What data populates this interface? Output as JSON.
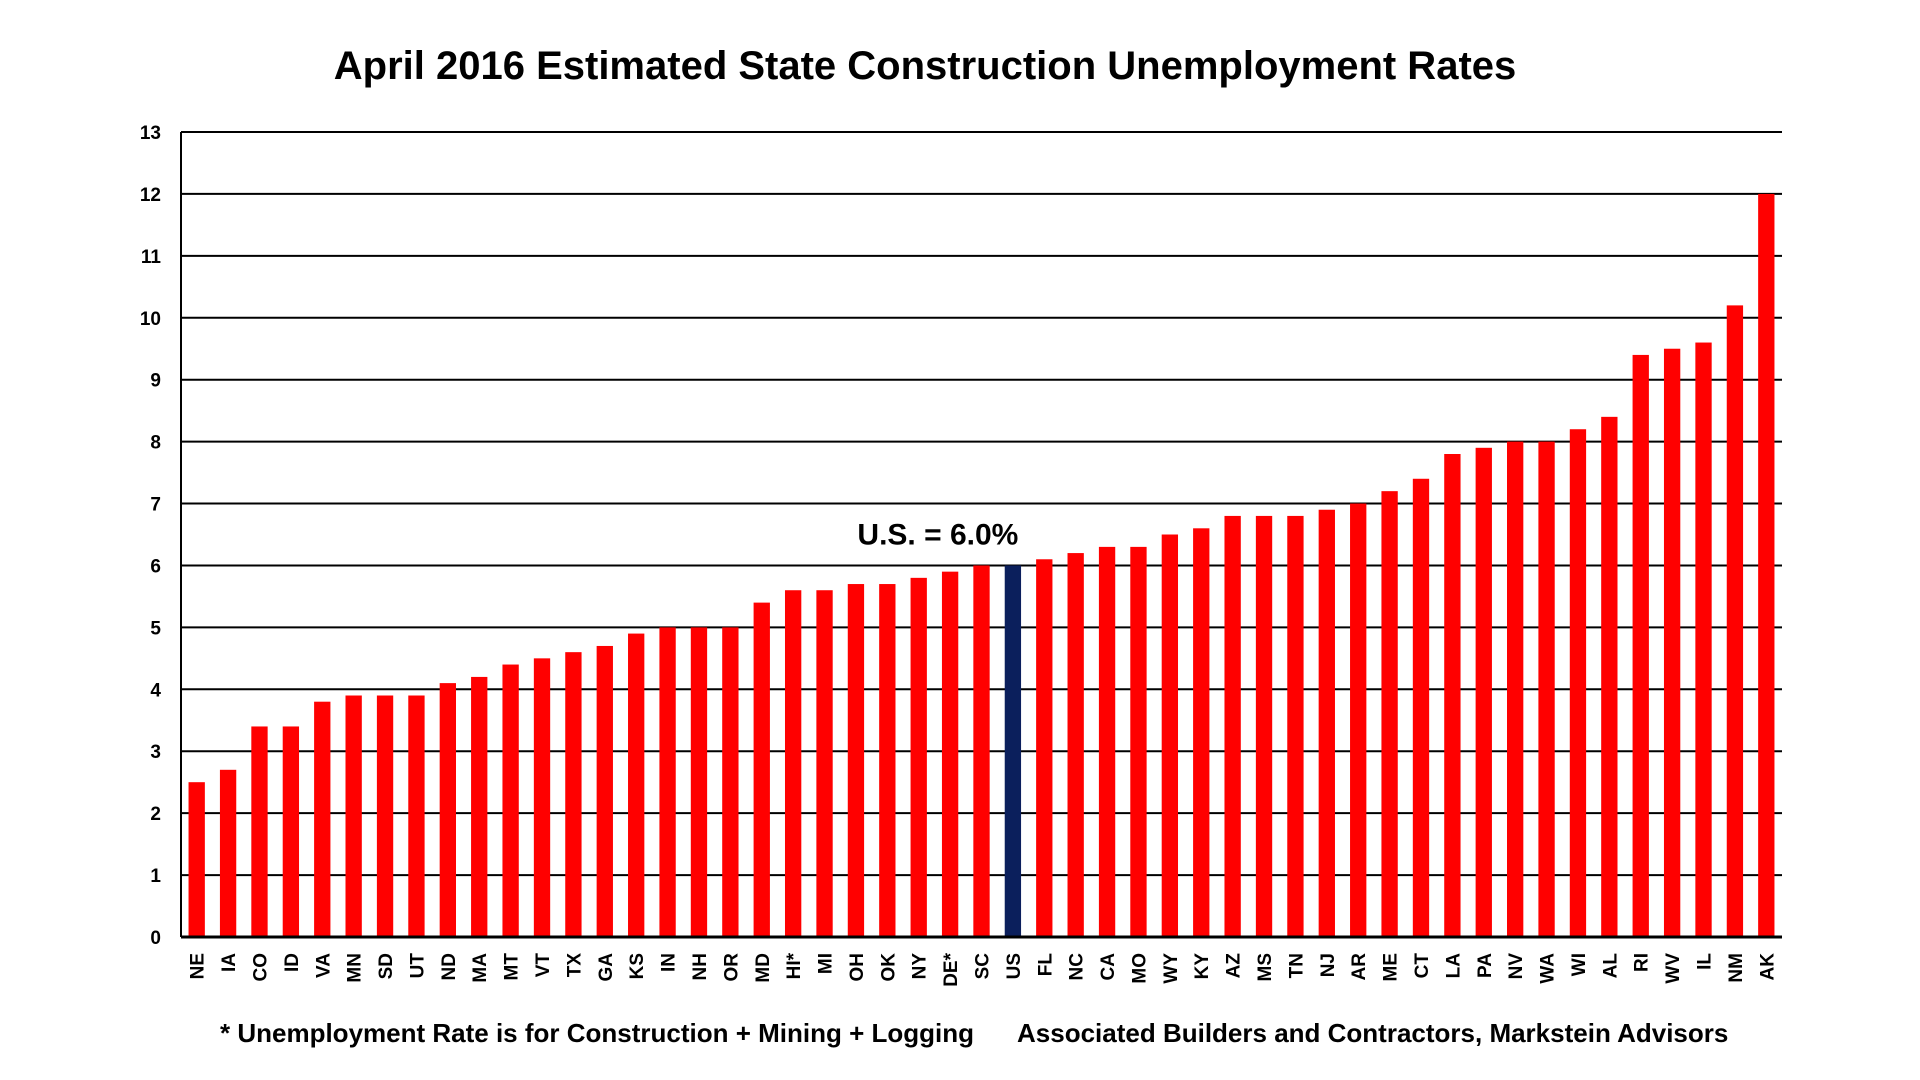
{
  "chart_data": {
    "type": "bar",
    "title": "April 2016 Estimated State Construction Unemployment Rates",
    "xlabel": "",
    "ylabel": "",
    "ylim": [
      0,
      13
    ],
    "yticks": [
      0,
      1,
      2,
      3,
      4,
      5,
      6,
      7,
      8,
      9,
      10,
      11,
      12,
      13
    ],
    "grid": "horizontal",
    "categories": [
      "NE",
      "IA",
      "CO",
      "ID",
      "VA",
      "MN",
      "SD",
      "UT",
      "ND",
      "MA",
      "MT",
      "VT",
      "TX",
      "GA",
      "KS",
      "IN",
      "NH",
      "OR",
      "MD",
      "HI*",
      "MI",
      "OH",
      "OK",
      "NY",
      "DE*",
      "SC",
      "US",
      "FL",
      "NC",
      "CA",
      "MO",
      "WY",
      "KY",
      "AZ",
      "MS",
      "TN",
      "NJ",
      "AR",
      "ME",
      "CT",
      "LA",
      "PA",
      "NV",
      "WA",
      "WI",
      "AL",
      "RI",
      "WV",
      "IL",
      "NM",
      "AK"
    ],
    "values": [
      2.5,
      2.7,
      3.4,
      3.4,
      3.8,
      3.9,
      3.9,
      3.9,
      4.1,
      4.2,
      4.4,
      4.5,
      4.6,
      4.7,
      4.9,
      5.0,
      5.0,
      5.0,
      5.4,
      5.6,
      5.6,
      5.7,
      5.7,
      5.8,
      5.9,
      6.0,
      6.0,
      6.1,
      6.2,
      6.3,
      6.3,
      6.5,
      6.6,
      6.8,
      6.8,
      6.8,
      6.9,
      7.0,
      7.2,
      7.4,
      7.8,
      7.9,
      8.0,
      8.0,
      8.2,
      8.4,
      9.4,
      9.5,
      9.6,
      10.2,
      12.0
    ],
    "highlight_category": "US",
    "annotation": "U.S. = 6.0%",
    "colors": {
      "bar": "#ff0000",
      "highlight": "#0b1f5c",
      "grid": "#000000"
    }
  },
  "footnotes": {
    "left": "* Unemployment Rate is for Construction + Mining + Logging",
    "right": "Associated Builders and Contractors, Markstein Advisors"
  }
}
